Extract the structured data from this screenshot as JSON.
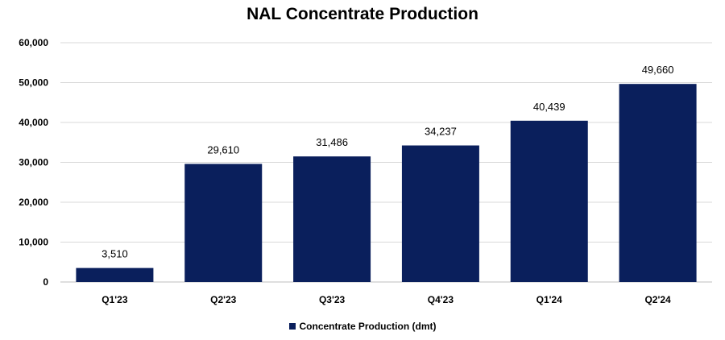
{
  "colors": {
    "bar": "#0a1f5c",
    "grid": "#d9d9d9",
    "axis": "#bfbfbf",
    "text": "#000000"
  },
  "chart_data": {
    "type": "bar",
    "title": "NAL Concentrate Production",
    "xlabel": "",
    "ylabel": "",
    "categories": [
      "Q1'23",
      "Q2'23",
      "Q3'23",
      "Q4'23",
      "Q1'24",
      "Q2'24"
    ],
    "series": [
      {
        "name": "Concentrate Production (dmt)",
        "values": [
          3510,
          29610,
          31486,
          34237,
          40439,
          49660
        ]
      }
    ],
    "data_labels": [
      "3,510",
      "29,610",
      "31,486",
      "34,237",
      "40,439",
      "49,660"
    ],
    "ylim": [
      0,
      60000
    ],
    "yticks": [
      0,
      10000,
      20000,
      30000,
      40000,
      50000,
      60000
    ],
    "ytick_labels": [
      "0",
      "10,000",
      "20,000",
      "30,000",
      "40,000",
      "50,000",
      "60,000"
    ],
    "grid": true,
    "legend_position": "bottom"
  }
}
